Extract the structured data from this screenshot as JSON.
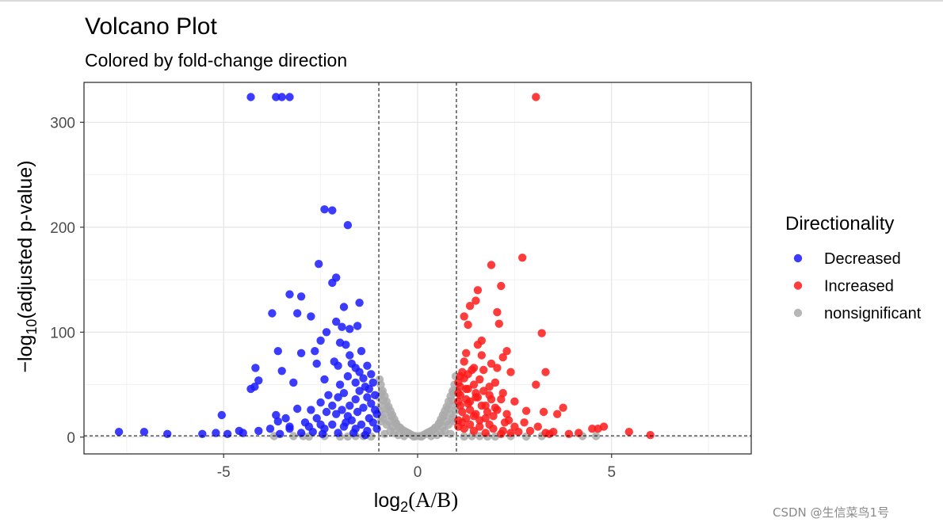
{
  "chart_data": {
    "type": "scatter",
    "title": "Volcano Plot",
    "subtitle": "Colored by fold-change direction",
    "xlabel": {
      "prefix": "log",
      "sub": "2",
      "main": "(A/B)"
    },
    "ylabel": {
      "prefix": "−log",
      "sub": "10",
      "main": "(adjusted p-value)"
    },
    "xlim": [
      -8.6,
      8.6
    ],
    "ylim": [
      -16,
      338
    ],
    "x_ticks": [
      -5,
      0,
      5
    ],
    "x_tick_labels": [
      "-5",
      "0",
      "5"
    ],
    "y_ticks": [
      0,
      100,
      200,
      300
    ],
    "y_tick_labels": [
      "0",
      "100",
      "200",
      "300"
    ],
    "x_minor_gridlines": [
      -7.5,
      -2.5,
      2.5,
      7.5
    ],
    "y_minor_gridlines": [
      50,
      150,
      250
    ],
    "vlines": [
      -1,
      1
    ],
    "hlines": [
      1.3
    ],
    "legend": {
      "title": "Directionality",
      "position": "right",
      "entries": [
        {
          "label": "Decreased",
          "color": "#1a1aff"
        },
        {
          "label": "Increased",
          "color": "#ff1a1a"
        },
        {
          "label": "nonsignificant",
          "color": "#aaaaaa"
        }
      ]
    },
    "series": [
      {
        "name": "Decreased",
        "color": "#1a1aff",
        "points": [
          [
            -4.3,
            324
          ],
          [
            -3.65,
            324
          ],
          [
            -3.5,
            324
          ],
          [
            -3.3,
            324
          ],
          [
            -2.4,
            217
          ],
          [
            -2.2,
            216
          ],
          [
            -1.8,
            202
          ],
          [
            -2.55,
            165
          ],
          [
            -2.1,
            152
          ],
          [
            -2.2,
            147
          ],
          [
            -3.3,
            136
          ],
          [
            -3.0,
            134
          ],
          [
            -1.5,
            128
          ],
          [
            -1.9,
            124
          ],
          [
            -3.75,
            118
          ],
          [
            -3.1,
            118
          ],
          [
            -2.75,
            115
          ],
          [
            -2.1,
            110
          ],
          [
            -1.55,
            106
          ],
          [
            -1.75,
            103
          ],
          [
            -1.95,
            105
          ],
          [
            -2.35,
            100
          ],
          [
            -2.0,
            90
          ],
          [
            -2.5,
            92
          ],
          [
            -3.6,
            82
          ],
          [
            -3.0,
            80
          ],
          [
            -2.65,
            82
          ],
          [
            -1.85,
            88
          ],
          [
            -1.45,
            82
          ],
          [
            -1.75,
            78
          ],
          [
            -4.18,
            66
          ],
          [
            -3.5,
            63
          ],
          [
            -2.6,
            70
          ],
          [
            -2.15,
            72
          ],
          [
            -2.05,
            68
          ],
          [
            -1.7,
            70
          ],
          [
            -1.6,
            66
          ],
          [
            -1.3,
            68
          ],
          [
            -4.2,
            48
          ],
          [
            -4.1,
            54
          ],
          [
            -4.3,
            46
          ],
          [
            -3.2,
            52
          ],
          [
            -2.4,
            55
          ],
          [
            -2.0,
            50
          ],
          [
            -1.8,
            58
          ],
          [
            -1.5,
            62
          ],
          [
            -1.2,
            60
          ],
          [
            -1.6,
            52
          ],
          [
            -1.35,
            48
          ],
          [
            -5.05,
            21
          ],
          [
            -3.6,
            15
          ],
          [
            -3.65,
            21
          ],
          [
            -3.1,
            27
          ],
          [
            -2.75,
            26
          ],
          [
            -2.5,
            33
          ],
          [
            -2.3,
            40
          ],
          [
            -2.2,
            30
          ],
          [
            -2.05,
            38
          ],
          [
            -1.9,
            42
          ],
          [
            -1.75,
            30
          ],
          [
            -1.6,
            36
          ],
          [
            -1.5,
            44
          ],
          [
            -1.4,
            28
          ],
          [
            -1.3,
            38
          ],
          [
            -1.2,
            32
          ],
          [
            -1.1,
            26
          ],
          [
            -1.05,
            22
          ],
          [
            -1.8,
            20
          ],
          [
            -2.6,
            18
          ],
          [
            -2.9,
            14
          ],
          [
            -3.3,
            10
          ],
          [
            -3.8,
            8
          ],
          [
            -4.1,
            6
          ],
          [
            -4.5,
            4
          ],
          [
            -4.9,
            3
          ],
          [
            -5.2,
            4
          ],
          [
            -4.6,
            6
          ],
          [
            -7.7,
            5
          ],
          [
            -7.05,
            5
          ],
          [
            -6.45,
            3
          ],
          [
            -5.55,
            3
          ],
          [
            -2.2,
            12
          ],
          [
            -1.9,
            10
          ],
          [
            -1.6,
            8
          ],
          [
            -1.3,
            6
          ],
          [
            -1.15,
            14
          ],
          [
            -2.4,
            8
          ],
          [
            -2.7,
            5
          ],
          [
            -3.0,
            4
          ],
          [
            -1.7,
            16
          ],
          [
            -1.45,
            12
          ],
          [
            -1.25,
            18
          ],
          [
            -2.1,
            22
          ],
          [
            -1.95,
            26
          ],
          [
            -2.35,
            24
          ],
          [
            -1.55,
            24
          ],
          [
            -1.05,
            8
          ],
          [
            -1.1,
            40
          ],
          [
            -1.25,
            46
          ],
          [
            -1.15,
            52
          ],
          [
            -1.4,
            56
          ],
          [
            -3.4,
            18
          ],
          [
            -3.3,
            8
          ],
          [
            -2.8,
            10
          ],
          [
            -2.5,
            12
          ],
          [
            -1.85,
            14
          ],
          [
            -1.65,
            4
          ],
          [
            -1.35,
            2
          ],
          [
            -2.05,
            4
          ],
          [
            -2.45,
            3
          ],
          [
            -3.55,
            3
          ]
        ]
      },
      {
        "name": "Increased",
        "color": "#ff1a1a",
        "points": [
          [
            3.05,
            324
          ],
          [
            2.7,
            171
          ],
          [
            1.9,
            164
          ],
          [
            2.15,
            144
          ],
          [
            1.55,
            140
          ],
          [
            1.5,
            130
          ],
          [
            1.35,
            125
          ],
          [
            2.05,
            119
          ],
          [
            1.2,
            115
          ],
          [
            1.3,
            107
          ],
          [
            3.2,
            99
          ],
          [
            2.1,
            108
          ],
          [
            1.65,
            92
          ],
          [
            1.55,
            88
          ],
          [
            2.3,
            82
          ],
          [
            1.25,
            80
          ],
          [
            1.65,
            78
          ],
          [
            2.2,
            76
          ],
          [
            1.2,
            72
          ],
          [
            1.9,
            70
          ],
          [
            2.05,
            66
          ],
          [
            1.45,
            66
          ],
          [
            3.3,
            62
          ],
          [
            2.4,
            62
          ],
          [
            1.3,
            60
          ],
          [
            1.1,
            58
          ],
          [
            1.6,
            55
          ],
          [
            2.0,
            52
          ],
          [
            1.45,
            50
          ],
          [
            1.85,
            48
          ],
          [
            3.05,
            50
          ],
          [
            1.25,
            46
          ],
          [
            1.7,
            44
          ],
          [
            2.2,
            42
          ],
          [
            1.1,
            40
          ],
          [
            1.5,
            38
          ],
          [
            1.9,
            36
          ],
          [
            2.5,
            34
          ],
          [
            1.3,
            32
          ],
          [
            1.65,
            30
          ],
          [
            3.75,
            28
          ],
          [
            2.05,
            26
          ],
          [
            2.8,
            25
          ],
          [
            3.25,
            24
          ],
          [
            3.6,
            22
          ],
          [
            1.15,
            24
          ],
          [
            1.45,
            20
          ],
          [
            1.75,
            18
          ],
          [
            2.35,
            16
          ],
          [
            2.75,
            14
          ],
          [
            3.1,
            10
          ],
          [
            4.5,
            8
          ],
          [
            4.65,
            8
          ],
          [
            4.8,
            10
          ],
          [
            5.45,
            5
          ],
          [
            6.0,
            2
          ],
          [
            4.15,
            4
          ],
          [
            3.9,
            3
          ],
          [
            3.5,
            5
          ],
          [
            3.3,
            4
          ],
          [
            2.6,
            5
          ],
          [
            2.4,
            4
          ],
          [
            2.2,
            6
          ],
          [
            1.95,
            8
          ],
          [
            1.6,
            10
          ],
          [
            1.35,
            12
          ],
          [
            1.15,
            14
          ],
          [
            1.05,
            16
          ],
          [
            1.25,
            18
          ],
          [
            1.5,
            22
          ],
          [
            1.8,
            24
          ],
          [
            2.0,
            28
          ],
          [
            1.1,
            30
          ],
          [
            1.35,
            34
          ],
          [
            1.55,
            38
          ],
          [
            1.05,
            42
          ],
          [
            1.3,
            46
          ],
          [
            1.05,
            52
          ],
          [
            1.2,
            56
          ],
          [
            1.15,
            62
          ],
          [
            1.4,
            64
          ],
          [
            1.7,
            64
          ],
          [
            2.5,
            10
          ],
          [
            2.9,
            6
          ],
          [
            3.4,
            3
          ],
          [
            2.15,
            3
          ],
          [
            1.75,
            4
          ],
          [
            1.45,
            6
          ],
          [
            1.2,
            8
          ],
          [
            1.05,
            10
          ],
          [
            1.85,
            12
          ],
          [
            2.25,
            14
          ],
          [
            1.6,
            16
          ],
          [
            1.95,
            20
          ],
          [
            2.3,
            22
          ],
          [
            1.35,
            26
          ],
          [
            1.75,
            30
          ],
          [
            1.05,
            34
          ],
          [
            1.25,
            36
          ],
          [
            1.5,
            42
          ],
          [
            1.85,
            40
          ],
          [
            2.15,
            36
          ],
          [
            1.1,
            48
          ]
        ]
      },
      {
        "name": "nonsignificant",
        "color": "#aaaaaa",
        "points": [
          [
            -0.05,
            1
          ],
          [
            0.05,
            1
          ],
          [
            -0.15,
            2
          ],
          [
            0.15,
            2
          ],
          [
            -0.25,
            4
          ],
          [
            0.25,
            4
          ],
          [
            -0.35,
            6
          ],
          [
            0.35,
            6
          ],
          [
            -0.45,
            9
          ],
          [
            0.45,
            9
          ],
          [
            -0.55,
            13
          ],
          [
            0.55,
            13
          ],
          [
            -0.6,
            17
          ],
          [
            0.6,
            17
          ],
          [
            -0.65,
            21
          ],
          [
            0.65,
            21
          ],
          [
            -0.7,
            25
          ],
          [
            0.7,
            25
          ],
          [
            -0.75,
            29
          ],
          [
            0.75,
            29
          ],
          [
            -0.8,
            34
          ],
          [
            0.8,
            34
          ],
          [
            -0.85,
            39
          ],
          [
            0.85,
            39
          ],
          [
            -0.9,
            44
          ],
          [
            0.9,
            44
          ],
          [
            -0.95,
            50
          ],
          [
            0.95,
            50
          ],
          [
            -0.98,
            55
          ],
          [
            0.98,
            58
          ],
          [
            -0.2,
            3
          ],
          [
            0.2,
            3
          ],
          [
            -0.3,
            5
          ],
          [
            0.3,
            5
          ],
          [
            -0.4,
            7
          ],
          [
            0.4,
            7
          ],
          [
            -0.5,
            10
          ],
          [
            0.5,
            10
          ],
          [
            -0.58,
            14
          ],
          [
            0.58,
            14
          ],
          [
            -0.68,
            20
          ],
          [
            0.68,
            20
          ],
          [
            -0.78,
            27
          ],
          [
            0.78,
            27
          ],
          [
            -0.88,
            35
          ],
          [
            0.88,
            35
          ],
          [
            -0.93,
            42
          ],
          [
            0.93,
            42
          ],
          [
            -0.65,
            10
          ],
          [
            0.65,
            10
          ],
          [
            -0.75,
            15
          ],
          [
            0.75,
            15
          ],
          [
            -0.85,
            22
          ],
          [
            0.85,
            22
          ],
          [
            -0.95,
            30
          ],
          [
            0.95,
            30
          ],
          [
            -0.9,
            18
          ],
          [
            0.9,
            18
          ],
          [
            -0.8,
            12
          ],
          [
            0.8,
            12
          ],
          [
            -0.7,
            6
          ],
          [
            0.7,
            6
          ],
          [
            -0.6,
            4
          ],
          [
            0.6,
            4
          ],
          [
            -0.5,
            2
          ],
          [
            0.5,
            2
          ],
          [
            -0.1,
            0.5
          ],
          [
            0.1,
            0.5
          ],
          [
            -0.35,
            1
          ],
          [
            0.35,
            1
          ],
          [
            -0.85,
            3
          ],
          [
            0.85,
            3
          ],
          [
            -1.2,
            0.5
          ],
          [
            -1.6,
            1
          ],
          [
            -2.0,
            0.5
          ],
          [
            -2.4,
            1
          ],
          [
            -2.8,
            0.5
          ],
          [
            -3.2,
            1
          ],
          [
            -3.7,
            1
          ],
          [
            -2.95,
            1
          ],
          [
            -1.4,
            1
          ],
          [
            -1.8,
            0.5
          ],
          [
            1.2,
            0.5
          ],
          [
            1.6,
            1
          ],
          [
            2.0,
            0.5
          ],
          [
            2.4,
            1
          ],
          [
            2.8,
            0.5
          ],
          [
            3.2,
            1
          ],
          [
            4.25,
            1
          ],
          [
            4.6,
            1
          ],
          [
            1.8,
            0.5
          ],
          [
            1.4,
            1
          ],
          [
            -0.95,
            15
          ],
          [
            0.95,
            15
          ],
          [
            -0.97,
            25
          ],
          [
            0.97,
            25
          ],
          [
            -0.99,
            38
          ],
          [
            0.99,
            45
          ]
        ]
      }
    ]
  },
  "watermark": "CSDN @生信菜鸟1号"
}
